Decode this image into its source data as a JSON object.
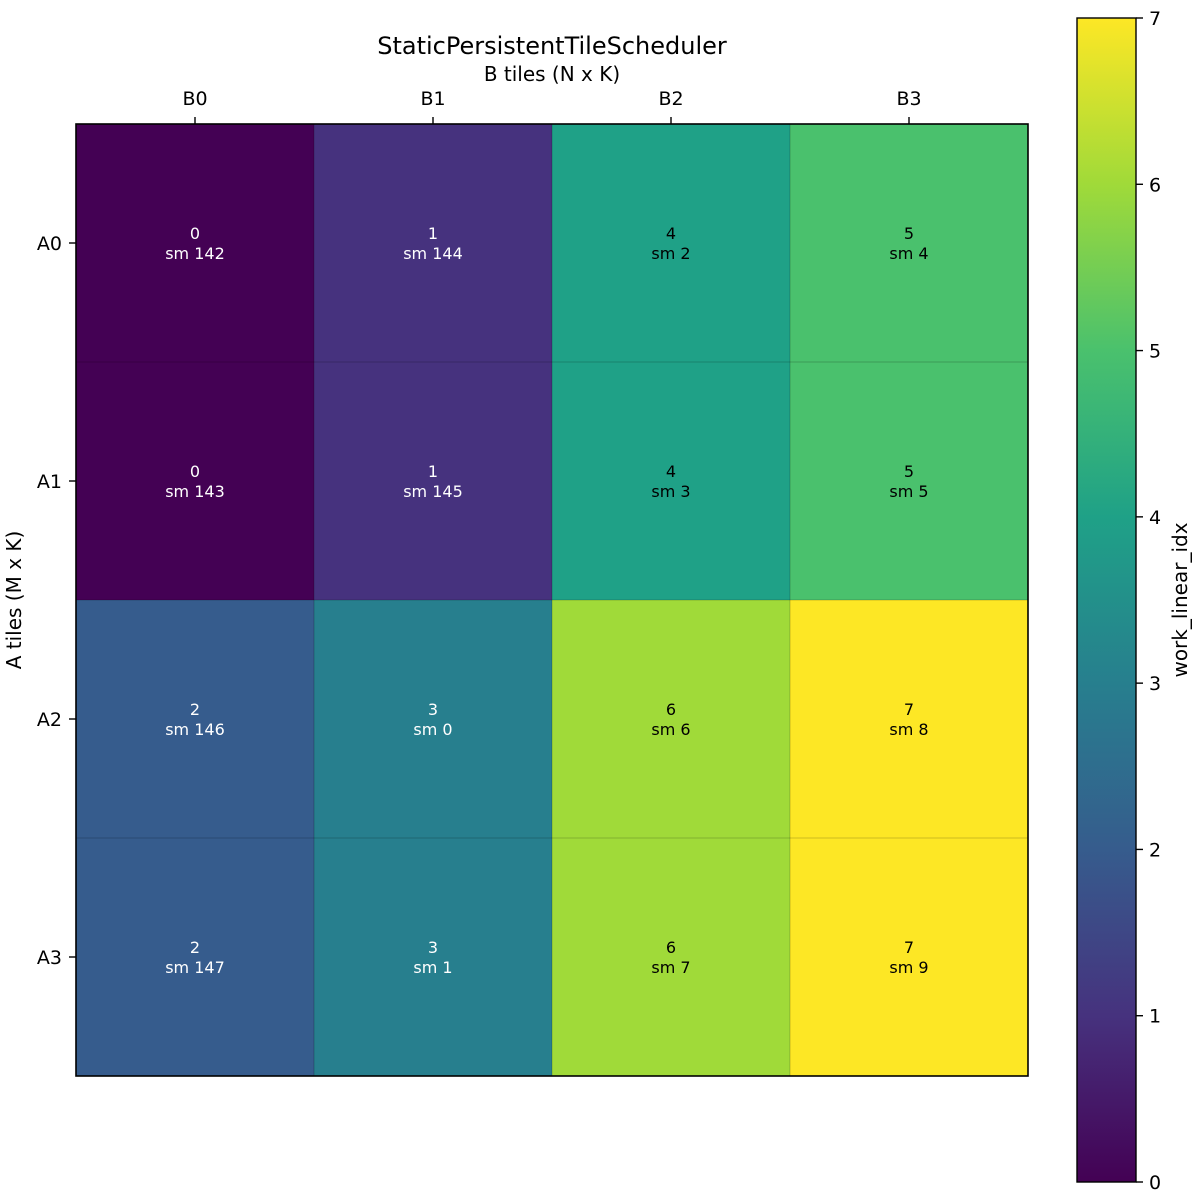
{
  "chart_data": {
    "type": "heatmap",
    "title": "StaticPersistentTileScheduler",
    "xlabel": "B tiles (N x K)",
    "ylabel": "A tiles (M x K)",
    "x_categories": [
      "B0",
      "B1",
      "B2",
      "B3"
    ],
    "y_categories": [
      "A0",
      "A1",
      "A2",
      "A3"
    ],
    "x_axis_position": "top",
    "values": [
      [
        0,
        1,
        4,
        5
      ],
      [
        0,
        1,
        4,
        5
      ],
      [
        2,
        3,
        6,
        7
      ],
      [
        2,
        3,
        6,
        7
      ]
    ],
    "cell_labels": [
      [
        "sm 142",
        "sm 144",
        "sm 2",
        "sm 4"
      ],
      [
        "sm 143",
        "sm 145",
        "sm 3",
        "sm 5"
      ],
      [
        "sm 146",
        "sm 0",
        "sm 6",
        "sm 8"
      ],
      [
        "sm 147",
        "sm 1",
        "sm 7",
        "sm 9"
      ]
    ],
    "colormap": "viridis",
    "colorbar": {
      "label": "work_linear_idx",
      "range": [
        0,
        7
      ],
      "ticks": [
        "0",
        "1",
        "2",
        "3",
        "4",
        "5",
        "6",
        "7"
      ],
      "position": "right"
    },
    "grid": false
  },
  "colors": {
    "0": "#440154",
    "1": "#46327e",
    "2": "#365c8d",
    "3": "#277f8e",
    "4": "#1fa187",
    "5": "#4ac16d",
    "6": "#a0da39",
    "7": "#fde725"
  }
}
